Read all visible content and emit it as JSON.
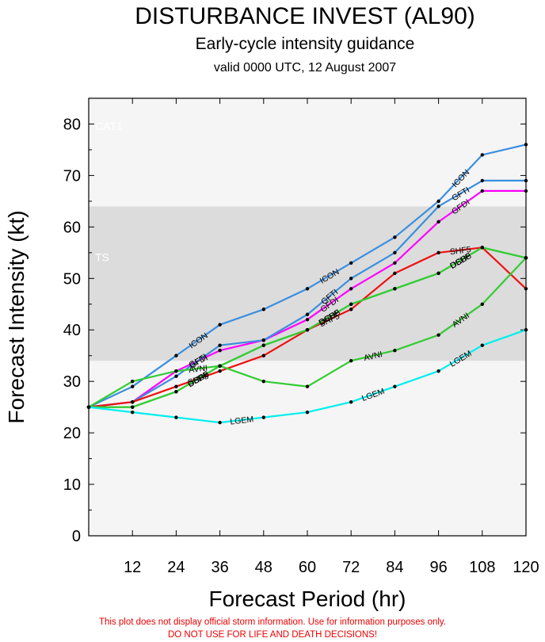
{
  "title": "DISTURBANCE INVEST (AL90)",
  "subtitle": "Early-cycle intensity guidance",
  "valid": "valid 0000 UTC, 12 August 2007",
  "disclaimer": [
    "This plot does not display official storm information. Use for information purposes only.",
    "DO NOT USE FOR LIFE AND DEATH DECISIONS!"
  ],
  "chart_data": {
    "type": "line",
    "xlabel": "Forecast Period (hr)",
    "ylabel": "Forecast Intensity (kt)",
    "xlim": [
      0,
      120
    ],
    "ylim": [
      0,
      85
    ],
    "xticks": [
      12,
      24,
      36,
      48,
      60,
      72,
      84,
      96,
      108,
      120
    ],
    "yticks": [
      0,
      10,
      20,
      30,
      40,
      50,
      60,
      70,
      80
    ],
    "bands": [
      {
        "label": "TS",
        "from": 34,
        "to": 64,
        "color": "#dcdcdc"
      },
      {
        "label": "CAT1",
        "from": 64,
        "to": 85,
        "color": "#f5f5f5"
      }
    ],
    "series": [
      {
        "name": "ICON",
        "color": "#3a8fe0",
        "x": [
          0,
          12,
          24,
          36,
          48,
          60,
          72,
          84,
          96,
          108,
          120
        ],
        "y": [
          25,
          29,
          35,
          41,
          44,
          48,
          53,
          58,
          65,
          74,
          76
        ],
        "labels": [
          24,
          60,
          96
        ]
      },
      {
        "name": "GFDI",
        "color": "#ff00ff",
        "x": [
          0,
          12,
          24,
          36,
          48,
          60,
          72,
          84,
          96,
          108,
          120
        ],
        "y": [
          25,
          26,
          32,
          36,
          38,
          42,
          48,
          53,
          61,
          67,
          67
        ],
        "labels": [
          24,
          60,
          96
        ]
      },
      {
        "name": "GFTI",
        "color": "#3a8fe0",
        "x": [
          0,
          12,
          24,
          36,
          48,
          60,
          72,
          84,
          96,
          108,
          120
        ],
        "y": [
          25,
          26,
          31,
          37,
          38,
          43,
          50,
          55,
          64,
          69,
          69
        ],
        "labels": [
          24,
          60,
          96
        ]
      },
      {
        "name": "SHF5",
        "color": "#ee1111",
        "x": [
          0,
          12,
          24,
          36,
          48,
          60,
          72,
          84,
          96,
          108,
          120
        ],
        "y": [
          25,
          26,
          29,
          32,
          35,
          40,
          44,
          51,
          55,
          56,
          48
        ],
        "labels": [
          24,
          60,
          96
        ]
      },
      {
        "name": "DSHP",
        "color": "#33cc33",
        "x": [
          0,
          12,
          24,
          36,
          48,
          60,
          72,
          84,
          96,
          108,
          120
        ],
        "y": [
          25,
          25,
          28,
          33,
          37,
          40,
          45,
          48,
          51,
          56,
          54
        ],
        "labels": [
          24,
          60,
          96
        ]
      },
      {
        "name": "OCD5",
        "color": "#33cc33",
        "x": [
          0,
          12,
          24,
          36,
          48,
          60,
          72,
          84,
          96,
          108,
          120
        ],
        "y": [
          25,
          25,
          28,
          33,
          37,
          40,
          45,
          48,
          51,
          56,
          54
        ],
        "labels": [
          24,
          60,
          96
        ]
      },
      {
        "name": "AVNI",
        "color": "#33cc33",
        "x": [
          0,
          12,
          24,
          36,
          48,
          60,
          72,
          84,
          96,
          108,
          120
        ],
        "y": [
          25,
          30,
          32,
          33,
          30,
          29,
          34,
          36,
          39,
          45,
          54
        ],
        "labels": [
          24,
          72,
          96
        ]
      },
      {
        "name": "LGEM",
        "color": "#00eeee",
        "x": [
          0,
          12,
          24,
          36,
          48,
          60,
          72,
          84,
          96,
          108,
          120
        ],
        "y": [
          25,
          24,
          23,
          22,
          23,
          24,
          26,
          29,
          32,
          37,
          40
        ],
        "labels": [
          36,
          72,
          96
        ]
      }
    ]
  }
}
